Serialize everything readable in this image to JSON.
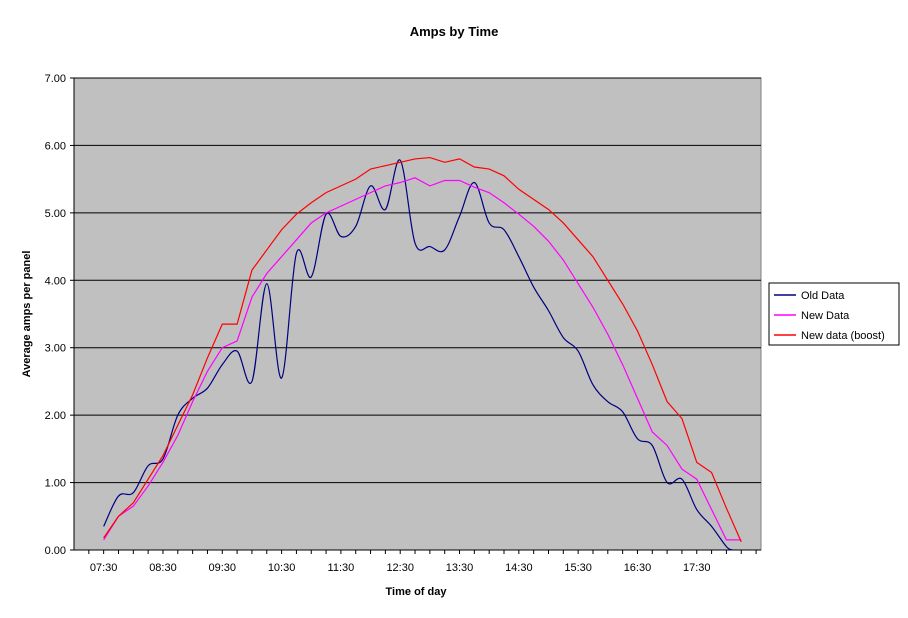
{
  "chart_data": {
    "type": "line",
    "title": "Amps by Time",
    "xlabel": "Time of day",
    "ylabel": "Average amps per panel",
    "ylim": [
      0,
      7
    ],
    "y_ticks": [
      "0.00",
      "1.00",
      "2.00",
      "3.00",
      "4.00",
      "5.00",
      "6.00",
      "7.00"
    ],
    "x_tick_labels": [
      "07:30",
      "08:30",
      "09:30",
      "10:30",
      "11:30",
      "12:30",
      "13:30",
      "14:30",
      "15:30",
      "16:30",
      "17:30"
    ],
    "plot_background": "#c0c0c0",
    "grid": "horizontal",
    "legend_position": "right",
    "series": [
      {
        "name": "Old Data",
        "color": "#000080",
        "x": [
          7.5,
          7.75,
          8.0,
          8.25,
          8.5,
          8.75,
          9.0,
          9.25,
          9.5,
          9.75,
          10.0,
          10.25,
          10.5,
          10.75,
          11.0,
          11.25,
          11.5,
          11.75,
          12.0,
          12.25,
          12.5,
          12.75,
          13.0,
          13.25,
          13.5,
          13.75,
          14.0,
          14.25,
          14.5,
          14.75,
          15.0,
          15.25,
          15.5,
          15.75,
          16.0,
          16.25,
          16.5,
          16.75,
          17.0,
          17.25,
          17.5,
          17.75,
          18.0,
          18.1
        ],
        "values": [
          0.35,
          0.8,
          0.85,
          1.25,
          1.35,
          2.0,
          2.25,
          2.4,
          2.75,
          2.95,
          2.5,
          3.95,
          2.55,
          4.4,
          4.05,
          4.98,
          4.65,
          4.8,
          5.4,
          5.05,
          5.78,
          4.55,
          4.5,
          4.45,
          4.95,
          5.45,
          4.85,
          4.75,
          4.35,
          3.9,
          3.55,
          3.15,
          2.95,
          2.45,
          2.2,
          2.05,
          1.65,
          1.55,
          1.0,
          1.05,
          0.6,
          0.35,
          0.05,
          0.0
        ]
      },
      {
        "name": "New Data",
        "color": "#ff00ff",
        "x": [
          7.5,
          7.75,
          8.0,
          8.25,
          8.5,
          8.75,
          9.0,
          9.25,
          9.5,
          9.75,
          10.0,
          10.25,
          10.5,
          10.75,
          11.0,
          11.25,
          11.5,
          11.75,
          12.0,
          12.25,
          12.5,
          12.75,
          13.0,
          13.25,
          13.5,
          13.75,
          14.0,
          14.25,
          14.5,
          14.75,
          15.0,
          15.25,
          15.5,
          15.75,
          16.0,
          16.25,
          16.5,
          16.75,
          17.0,
          17.25,
          17.5,
          17.75,
          18.0,
          18.25
        ],
        "values": [
          0.15,
          0.5,
          0.65,
          0.95,
          1.3,
          1.7,
          2.2,
          2.65,
          3.0,
          3.1,
          3.75,
          4.1,
          4.35,
          4.6,
          4.85,
          5.0,
          5.1,
          5.2,
          5.3,
          5.4,
          5.45,
          5.52,
          5.4,
          5.48,
          5.48,
          5.38,
          5.3,
          5.15,
          4.98,
          4.8,
          4.58,
          4.3,
          3.95,
          3.6,
          3.2,
          2.75,
          2.25,
          1.75,
          1.55,
          1.2,
          1.05,
          0.6,
          0.15,
          0.15
        ]
      },
      {
        "name": "New data (boost)",
        "color": "#ff0000",
        "x": [
          7.5,
          7.75,
          8.0,
          8.25,
          8.5,
          8.75,
          9.0,
          9.25,
          9.5,
          9.75,
          10.0,
          10.25,
          10.5,
          10.75,
          11.0,
          11.25,
          11.5,
          11.75,
          12.0,
          12.25,
          12.5,
          12.75,
          13.0,
          13.25,
          13.5,
          13.75,
          14.0,
          14.25,
          14.5,
          14.75,
          15.0,
          15.25,
          15.5,
          15.75,
          16.0,
          16.25,
          16.5,
          16.75,
          17.0,
          17.25,
          17.5,
          17.75,
          18.0,
          18.25
        ],
        "values": [
          0.18,
          0.5,
          0.7,
          1.05,
          1.4,
          1.85,
          2.3,
          2.85,
          3.35,
          3.35,
          4.15,
          4.45,
          4.75,
          4.98,
          5.15,
          5.3,
          5.4,
          5.5,
          5.65,
          5.7,
          5.75,
          5.8,
          5.82,
          5.75,
          5.8,
          5.68,
          5.65,
          5.55,
          5.35,
          5.2,
          5.05,
          4.85,
          4.6,
          4.35,
          4.0,
          3.65,
          3.25,
          2.75,
          2.2,
          1.95,
          1.3,
          1.15,
          0.62,
          0.12
        ]
      }
    ]
  }
}
